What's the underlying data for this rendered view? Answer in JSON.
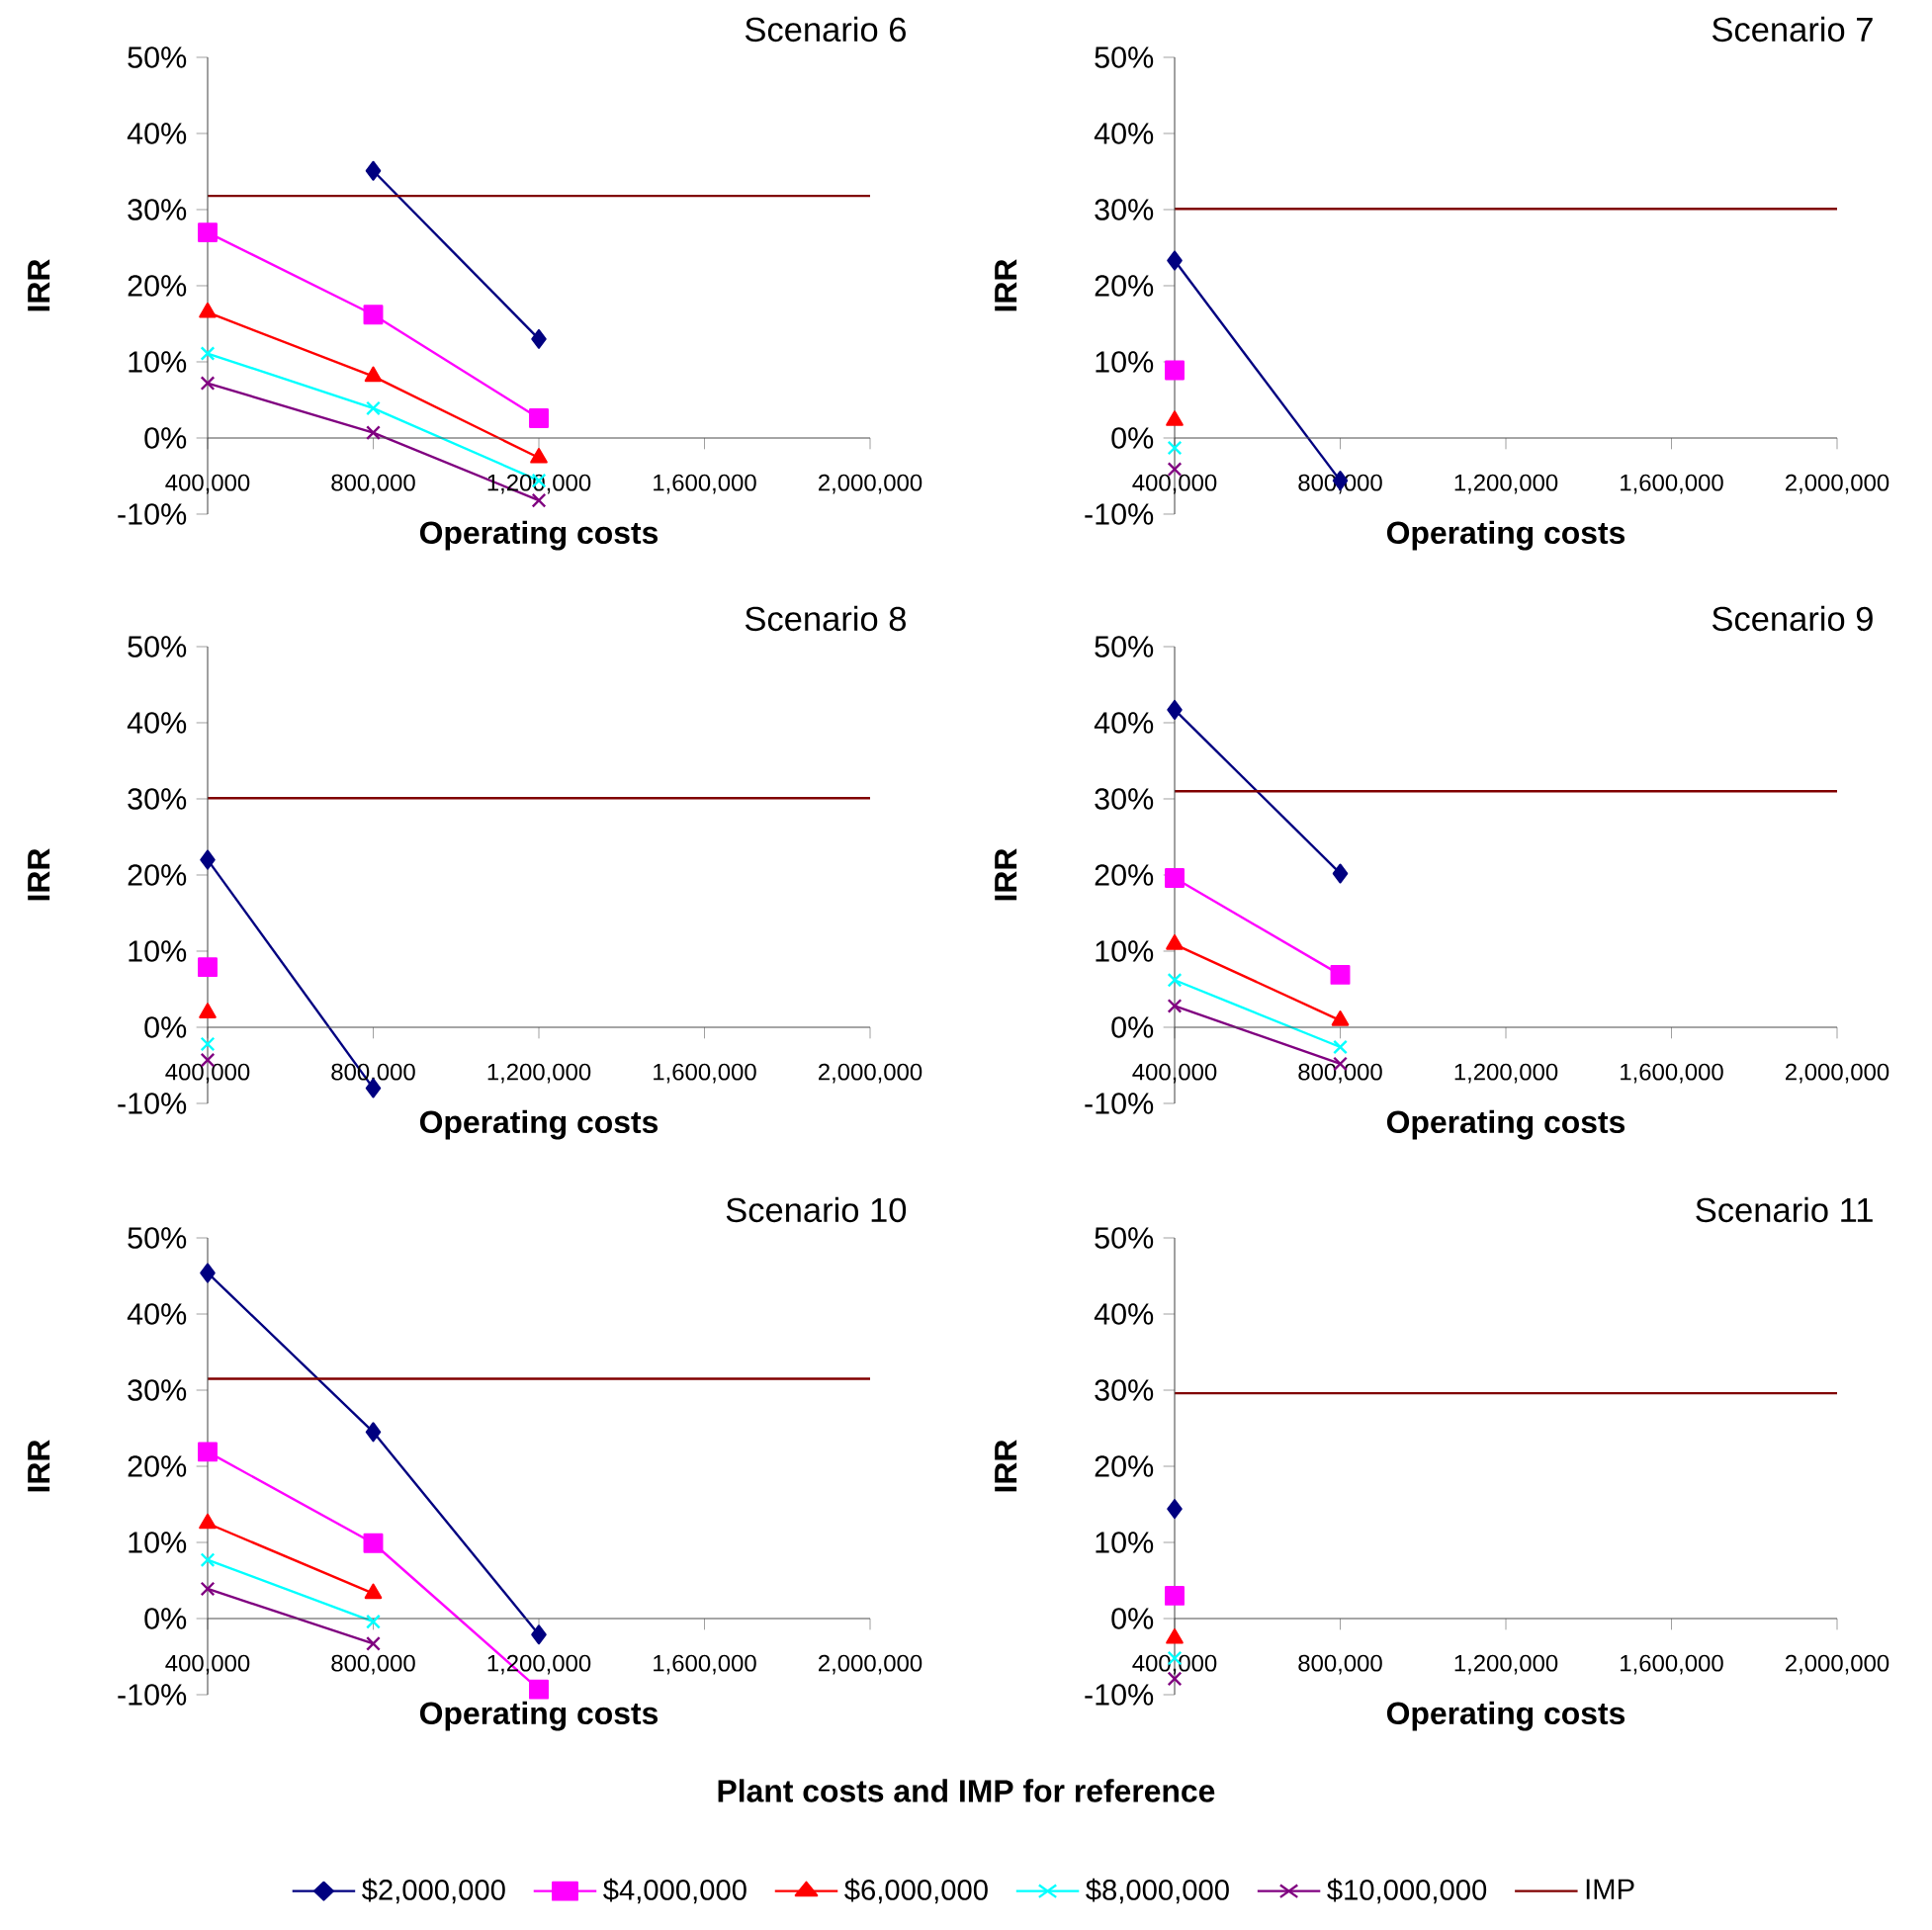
{
  "chart_data": [
    {
      "type": "line",
      "title": "Scenario 6",
      "xlabel": "Operating costs",
      "ylabel": "IRR",
      "x": [
        400000,
        800000,
        1200000
      ],
      "xlim": [
        400000,
        2000000
      ],
      "ylim": [
        -10,
        50
      ],
      "xticks": [
        {
          "value": 400000,
          "label": "400,000"
        },
        {
          "value": 800000,
          "label": "800,000"
        },
        {
          "value": 1200000,
          "label": "1,200,000"
        },
        {
          "value": 1600000,
          "label": "1,600,000"
        },
        {
          "value": 2000000,
          "label": "2,000,000"
        }
      ],
      "yticks": [
        {
          "value": -10,
          "label": "-10%"
        },
        {
          "value": 0,
          "label": "0%"
        },
        {
          "value": 10,
          "label": "10%"
        },
        {
          "value": 20,
          "label": "20%"
        },
        {
          "value": 30,
          "label": "30%"
        },
        {
          "value": 40,
          "label": "40%"
        },
        {
          "value": 50,
          "label": "50%"
        }
      ],
      "ref_lines": [
        {
          "axis": "y",
          "value": 31.8,
          "color": "#800000"
        }
      ],
      "series": [
        {
          "color": "#000080",
          "marker": "diamond",
          "values": [
            null,
            35.1,
            13.0
          ]
        },
        {
          "color": "#ff00ff",
          "marker": "square",
          "values": [
            27.0,
            16.2,
            2.6
          ]
        },
        {
          "color": "#ff0000",
          "marker": "triangle",
          "values": [
            16.5,
            8.1,
            -2.6
          ]
        },
        {
          "color": "#00ffff",
          "marker": "cross",
          "values": [
            11.1,
            3.9,
            -5.6
          ]
        },
        {
          "color": "#800080",
          "marker": "cross",
          "values": [
            7.2,
            0.7,
            -8.2
          ]
        }
      ]
    },
    {
      "type": "line",
      "title": "Scenario 7",
      "xlabel": "Operating costs",
      "ylabel": "IRR",
      "x": [
        400000,
        800000
      ],
      "xlim": [
        400000,
        2000000
      ],
      "ylim": [
        -10,
        50
      ],
      "xticks": [
        {
          "value": 400000,
          "label": "400,000"
        },
        {
          "value": 800000,
          "label": "800,000"
        },
        {
          "value": 1200000,
          "label": "1,200,000"
        },
        {
          "value": 1600000,
          "label": "1,600,000"
        },
        {
          "value": 2000000,
          "label": "2,000,000"
        }
      ],
      "yticks": [
        {
          "value": -10,
          "label": "-10%"
        },
        {
          "value": 0,
          "label": "0%"
        },
        {
          "value": 10,
          "label": "10%"
        },
        {
          "value": 20,
          "label": "20%"
        },
        {
          "value": 30,
          "label": "30%"
        },
        {
          "value": 40,
          "label": "40%"
        },
        {
          "value": 50,
          "label": "50%"
        }
      ],
      "ref_lines": [
        {
          "axis": "y",
          "value": 30.1,
          "color": "#800000"
        }
      ],
      "series": [
        {
          "color": "#000080",
          "marker": "diamond",
          "values": [
            23.3,
            -5.6
          ]
        },
        {
          "color": "#ff00ff",
          "marker": "square",
          "values": [
            8.9,
            null
          ]
        },
        {
          "color": "#ff0000",
          "marker": "triangle",
          "values": [
            2.3,
            null
          ]
        },
        {
          "color": "#00ffff",
          "marker": "cross",
          "values": [
            -1.3,
            null
          ]
        },
        {
          "color": "#800080",
          "marker": "cross",
          "values": [
            -4.1,
            null
          ]
        }
      ]
    },
    {
      "type": "line",
      "title": "Scenario 8",
      "xlabel": "Operating costs",
      "ylabel": "IRR",
      "x": [
        400000,
        800000
      ],
      "xlim": [
        400000,
        2000000
      ],
      "ylim": [
        -10,
        50
      ],
      "xticks": [
        {
          "value": 400000,
          "label": "400,000"
        },
        {
          "value": 800000,
          "label": "800,000"
        },
        {
          "value": 1200000,
          "label": "1,200,000"
        },
        {
          "value": 1600000,
          "label": "1,600,000"
        },
        {
          "value": 2000000,
          "label": "2,000,000"
        }
      ],
      "yticks": [
        {
          "value": -10,
          "label": "-10%"
        },
        {
          "value": 0,
          "label": "0%"
        },
        {
          "value": 10,
          "label": "10%"
        },
        {
          "value": 20,
          "label": "20%"
        },
        {
          "value": 30,
          "label": "30%"
        },
        {
          "value": 40,
          "label": "40%"
        },
        {
          "value": 50,
          "label": "50%"
        }
      ],
      "ref_lines": [
        {
          "axis": "y",
          "value": 30.1,
          "color": "#800000"
        }
      ],
      "series": [
        {
          "color": "#000080",
          "marker": "diamond",
          "values": [
            22.0,
            -8.0
          ]
        },
        {
          "color": "#ff00ff",
          "marker": "square",
          "values": [
            7.9,
            null
          ]
        },
        {
          "color": "#ff0000",
          "marker": "triangle",
          "values": [
            1.9,
            null
          ]
        },
        {
          "color": "#00ffff",
          "marker": "cross",
          "values": [
            -2.2,
            null
          ]
        },
        {
          "color": "#800080",
          "marker": "cross",
          "values": [
            -4.3,
            null
          ]
        }
      ]
    },
    {
      "type": "line",
      "title": "Scenario 9",
      "xlabel": "Operating costs",
      "ylabel": "IRR",
      "x": [
        400000,
        800000
      ],
      "xlim": [
        400000,
        2000000
      ],
      "ylim": [
        -10,
        50
      ],
      "xticks": [
        {
          "value": 400000,
          "label": "400,000"
        },
        {
          "value": 800000,
          "label": "800,000"
        },
        {
          "value": 1200000,
          "label": "1,200,000"
        },
        {
          "value": 1600000,
          "label": "1,600,000"
        },
        {
          "value": 2000000,
          "label": "2,000,000"
        }
      ],
      "yticks": [
        {
          "value": -10,
          "label": "-10%"
        },
        {
          "value": 0,
          "label": "0%"
        },
        {
          "value": 10,
          "label": "10%"
        },
        {
          "value": 20,
          "label": "20%"
        },
        {
          "value": 30,
          "label": "30%"
        },
        {
          "value": 40,
          "label": "40%"
        },
        {
          "value": 50,
          "label": "50%"
        }
      ],
      "ref_lines": [
        {
          "axis": "y",
          "value": 31.0,
          "color": "#800000"
        }
      ],
      "series": [
        {
          "color": "#000080",
          "marker": "diamond",
          "values": [
            41.7,
            20.2
          ]
        },
        {
          "color": "#ff00ff",
          "marker": "square",
          "values": [
            19.6,
            6.9
          ]
        },
        {
          "color": "#ff0000",
          "marker": "triangle",
          "values": [
            10.9,
            0.9
          ]
        },
        {
          "color": "#00ffff",
          "marker": "cross",
          "values": [
            6.2,
            -2.6
          ]
        },
        {
          "color": "#800080",
          "marker": "cross",
          "values": [
            2.8,
            -4.8
          ]
        }
      ]
    },
    {
      "type": "line",
      "title": "Scenario 10",
      "xlabel": "Operating costs",
      "ylabel": "IRR",
      "x": [
        400000,
        800000,
        1200000
      ],
      "xlim": [
        400000,
        2000000
      ],
      "ylim": [
        -10,
        50
      ],
      "xticks": [
        {
          "value": 400000,
          "label": "400,000"
        },
        {
          "value": 800000,
          "label": "800,000"
        },
        {
          "value": 1200000,
          "label": "1,200,000"
        },
        {
          "value": 1600000,
          "label": "1,600,000"
        },
        {
          "value": 2000000,
          "label": "2,000,000"
        }
      ],
      "yticks": [
        {
          "value": -10,
          "label": "-10%"
        },
        {
          "value": 0,
          "label": "0%"
        },
        {
          "value": 10,
          "label": "10%"
        },
        {
          "value": 20,
          "label": "20%"
        },
        {
          "value": 30,
          "label": "30%"
        },
        {
          "value": 40,
          "label": "40%"
        },
        {
          "value": 50,
          "label": "50%"
        }
      ],
      "ref_lines": [
        {
          "axis": "y",
          "value": 31.5,
          "color": "#800000"
        }
      ],
      "series": [
        {
          "color": "#000080",
          "marker": "diamond",
          "values": [
            45.4,
            24.5,
            -2.1
          ]
        },
        {
          "color": "#ff00ff",
          "marker": "square",
          "values": [
            21.9,
            9.9,
            -9.3
          ]
        },
        {
          "color": "#ff0000",
          "marker": "triangle",
          "values": [
            12.5,
            3.3,
            null
          ]
        },
        {
          "color": "#00ffff",
          "marker": "cross",
          "values": [
            7.7,
            -0.4,
            null
          ]
        },
        {
          "color": "#800080",
          "marker": "cross",
          "values": [
            3.9,
            -3.3,
            null
          ]
        }
      ]
    },
    {
      "type": "line",
      "title": "Scenario 11",
      "xlabel": "Operating costs",
      "ylabel": "IRR",
      "x": [
        400000
      ],
      "xlim": [
        400000,
        2000000
      ],
      "ylim": [
        -10,
        50
      ],
      "xticks": [
        {
          "value": 400000,
          "label": "400,000"
        },
        {
          "value": 800000,
          "label": "800,000"
        },
        {
          "value": 1200000,
          "label": "1,200,000"
        },
        {
          "value": 1600000,
          "label": "1,600,000"
        },
        {
          "value": 2000000,
          "label": "2,000,000"
        }
      ],
      "yticks": [
        {
          "value": -10,
          "label": "-10%"
        },
        {
          "value": 0,
          "label": "0%"
        },
        {
          "value": 10,
          "label": "10%"
        },
        {
          "value": 20,
          "label": "20%"
        },
        {
          "value": 30,
          "label": "30%"
        },
        {
          "value": 40,
          "label": "40%"
        },
        {
          "value": 50,
          "label": "50%"
        }
      ],
      "legend": "bottom",
      "legend_title": "Plant costs and IMP for reference",
      "ref_lines": [
        {
          "axis": "y",
          "value": 29.6,
          "color": "#800000",
          "label": "IMP"
        }
      ],
      "series": [
        {
          "name": "$2,000,000",
          "color": "#000080",
          "marker": "diamond",
          "values": [
            14.4
          ]
        },
        {
          "name": "$4,000,000",
          "color": "#ff00ff",
          "marker": "square",
          "values": [
            3.0
          ]
        },
        {
          "name": "$6,000,000",
          "color": "#ff0000",
          "marker": "triangle",
          "values": [
            -2.6
          ]
        },
        {
          "name": "$8,000,000",
          "color": "#00ffff",
          "marker": "cross",
          "values": [
            -5.2
          ]
        },
        {
          "name": "$10,000,000",
          "color": "#800080",
          "marker": "cross",
          "values": [
            -7.9
          ]
        }
      ]
    }
  ]
}
